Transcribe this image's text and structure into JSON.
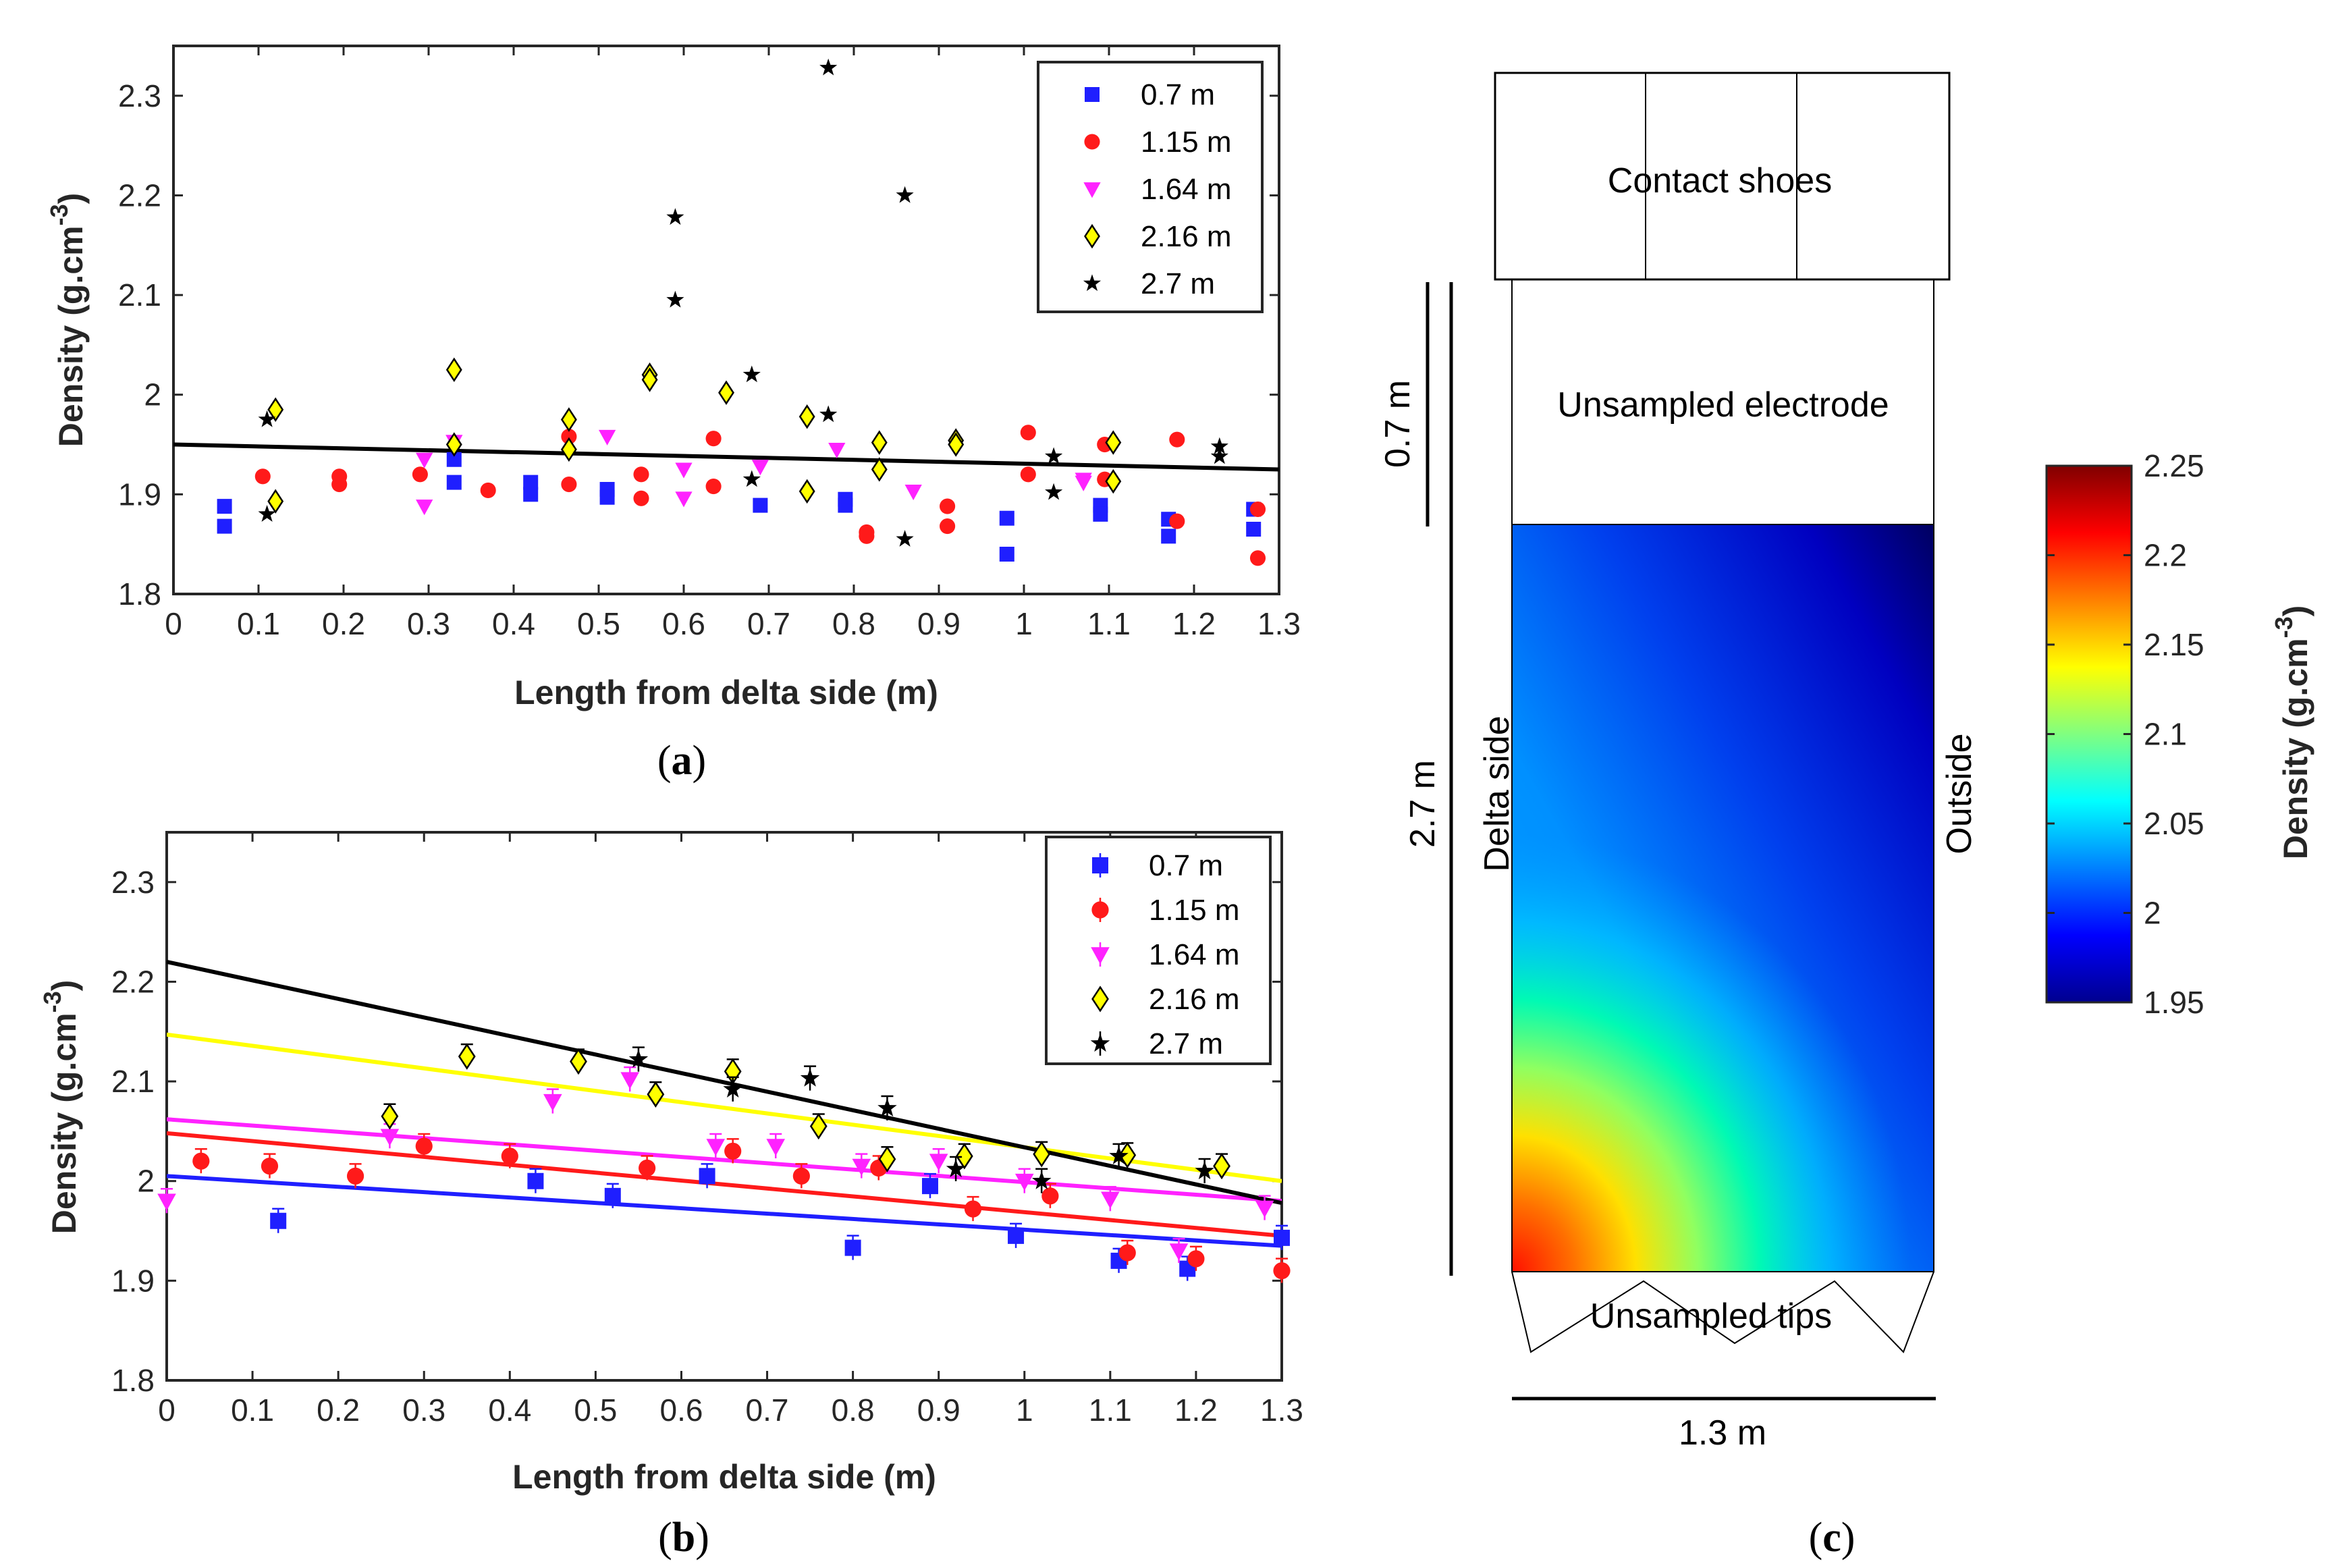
{
  "chart_data": [
    {
      "id": "a",
      "type": "scatter",
      "panel_label": "a",
      "xlabel": "Length from delta side (m)",
      "ylabel": "Density (g.cm",
      "ylabel_sup": "-3",
      "ylabel_close": ")",
      "xlim": [
        0,
        1.3
      ],
      "ylim": [
        1.8,
        2.35
      ],
      "xticks": [
        "0",
        "0.1",
        "0.2",
        "0.3",
        "0.4",
        "0.5",
        "0.6",
        "0.7",
        "0.8",
        "0.9",
        "1",
        "1.1",
        "1.2",
        "1.3"
      ],
      "yticks": [
        "1.8",
        "1.9",
        "2",
        "2.1",
        "2.2",
        "2.3"
      ],
      "legend": [
        "0.7 m",
        "1.15 m",
        "1.64 m",
        "2.16 m",
        "2.7 m"
      ],
      "legend_position": "top-right",
      "series": [
        {
          "name": "0.7 m",
          "color": "#1f1fff",
          "marker": "square",
          "points": [
            [
              0.06,
              1.888
            ],
            [
              0.06,
              1.868
            ],
            [
              0.33,
              1.935
            ],
            [
              0.33,
              1.912
            ],
            [
              0.42,
              1.912
            ],
            [
              0.42,
              1.9
            ],
            [
              0.51,
              1.905
            ],
            [
              0.51,
              1.897
            ],
            [
              0.69,
              1.889
            ],
            [
              0.79,
              1.895
            ],
            [
              0.79,
              1.889
            ],
            [
              0.98,
              1.876
            ],
            [
              0.98,
              1.84
            ],
            [
              1.09,
              1.889
            ],
            [
              1.09,
              1.88
            ],
            [
              1.17,
              1.875
            ],
            [
              1.17,
              1.858
            ],
            [
              1.27,
              1.885
            ],
            [
              1.27,
              1.865
            ]
          ]
        },
        {
          "name": "1.15 m",
          "color": "#ff1a1a",
          "marker": "circle",
          "points": [
            [
              0.105,
              1.918
            ],
            [
              0.195,
              1.918
            ],
            [
              0.195,
              1.91
            ],
            [
              0.29,
              1.92
            ],
            [
              0.37,
              1.904
            ],
            [
              0.465,
              1.958
            ],
            [
              0.465,
              1.91
            ],
            [
              0.55,
              1.92
            ],
            [
              0.55,
              1.896
            ],
            [
              0.635,
              1.956
            ],
            [
              0.635,
              1.908
            ],
            [
              0.815,
              1.862
            ],
            [
              0.815,
              1.858
            ],
            [
              0.91,
              1.888
            ],
            [
              0.91,
              1.868
            ],
            [
              1.005,
              1.962
            ],
            [
              1.005,
              1.92
            ],
            [
              1.095,
              1.95
            ],
            [
              1.095,
              1.915
            ],
            [
              1.18,
              1.955
            ],
            [
              1.18,
              1.873
            ],
            [
              1.275,
              1.885
            ],
            [
              1.275,
              1.836
            ]
          ]
        },
        {
          "name": "1.64 m",
          "color": "#ff22ff",
          "marker": "triangle-down",
          "points": [
            [
              0.295,
              1.935
            ],
            [
              0.295,
              1.888
            ],
            [
              0.33,
              1.953
            ],
            [
              0.51,
              1.958
            ],
            [
              0.6,
              1.925
            ],
            [
              0.6,
              1.896
            ],
            [
              0.69,
              1.928
            ],
            [
              0.78,
              1.945
            ],
            [
              0.87,
              1.903
            ],
            [
              1.07,
              1.912
            ],
            [
              1.07,
              1.915
            ]
          ]
        },
        {
          "name": "2.16 m",
          "color": "#ffff00",
          "marker": "diamond",
          "points": [
            [
              0.12,
              1.985
            ],
            [
              0.12,
              1.893
            ],
            [
              0.33,
              2.025
            ],
            [
              0.33,
              1.95
            ],
            [
              0.465,
              1.975
            ],
            [
              0.465,
              1.945
            ],
            [
              0.56,
              2.02
            ],
            [
              0.56,
              2.015
            ],
            [
              0.65,
              2.002
            ],
            [
              0.745,
              1.978
            ],
            [
              0.745,
              1.903
            ],
            [
              0.83,
              1.952
            ],
            [
              0.83,
              1.925
            ],
            [
              0.92,
              1.954
            ],
            [
              0.92,
              1.95
            ],
            [
              1.105,
              1.952
            ],
            [
              1.105,
              1.913
            ]
          ]
        },
        {
          "name": "2.7 m",
          "color": "#000000",
          "marker": "star",
          "points": [
            [
              0.11,
              1.975
            ],
            [
              0.11,
              1.88
            ],
            [
              0.59,
              2.178
            ],
            [
              0.59,
              2.095
            ],
            [
              0.68,
              2.02
            ],
            [
              0.68,
              1.915
            ],
            [
              0.77,
              2.328
            ],
            [
              0.77,
              1.98
            ],
            [
              0.86,
              2.2
            ],
            [
              0.86,
              1.855
            ],
            [
              1.035,
              1.938
            ],
            [
              1.035,
              1.902
            ],
            [
              1.23,
              1.948
            ],
            [
              1.23,
              1.938
            ]
          ]
        }
      ],
      "fits": [
        {
          "name": "all",
          "color": "#000000",
          "y0": 1.95,
          "y1": 1.925
        }
      ]
    },
    {
      "id": "b",
      "type": "scatter",
      "panel_label": "b",
      "xlabel": "Length from delta side (m)",
      "ylabel": "Density (g.cm",
      "ylabel_sup": "-3",
      "ylabel_close": ")",
      "xlim": [
        0,
        1.3
      ],
      "ylim": [
        1.8,
        2.35
      ],
      "xticks": [
        "0",
        "0.1",
        "0.2",
        "0.3",
        "0.4",
        "0.5",
        "0.6",
        "0.7",
        "0.8",
        "0.9",
        "1",
        "1.1",
        "1.2",
        "1.3"
      ],
      "yticks": [
        "1.8",
        "1.9",
        "2",
        "2.1",
        "2.2",
        "2.3"
      ],
      "legend": [
        "0.7 m",
        "1.15 m",
        "1.64 m",
        "2.16 m",
        "2.7 m"
      ],
      "legend_position": "top-right",
      "series": [
        {
          "name": "0.7 m",
          "color": "#1f1fff",
          "marker": "square",
          "points": [
            [
              0.13,
              1.96
            ],
            [
              0.43,
              2.0
            ],
            [
              0.52,
              1.985
            ],
            [
              0.63,
              2.005
            ],
            [
              0.8,
              1.933
            ],
            [
              0.89,
              1.995
            ],
            [
              0.99,
              1.945
            ],
            [
              1.11,
              1.92
            ],
            [
              1.19,
              1.912
            ],
            [
              1.3,
              1.943
            ]
          ]
        },
        {
          "name": "1.15 m",
          "color": "#ff1a1a",
          "marker": "circle",
          "points": [
            [
              0.04,
              2.02
            ],
            [
              0.12,
              2.015
            ],
            [
              0.22,
              2.005
            ],
            [
              0.3,
              2.035
            ],
            [
              0.4,
              2.025
            ],
            [
              0.56,
              2.013
            ],
            [
              0.66,
              2.03
            ],
            [
              0.74,
              2.005
            ],
            [
              0.83,
              2.013
            ],
            [
              0.94,
              1.972
            ],
            [
              1.03,
              1.985
            ],
            [
              1.12,
              1.928
            ],
            [
              1.2,
              1.922
            ],
            [
              1.3,
              1.91
            ]
          ]
        },
        {
          "name": "1.64 m",
          "color": "#ff22ff",
          "marker": "triangle-down",
          "points": [
            [
              0.0,
              1.98
            ],
            [
              0.26,
              2.045
            ],
            [
              0.45,
              2.08
            ],
            [
              0.54,
              2.102
            ],
            [
              0.64,
              2.035
            ],
            [
              0.71,
              2.035
            ],
            [
              0.81,
              2.015
            ],
            [
              0.9,
              2.02
            ],
            [
              1.0,
              2.0
            ],
            [
              1.1,
              1.982
            ],
            [
              1.18,
              1.93
            ],
            [
              1.28,
              1.973
            ]
          ]
        },
        {
          "name": "2.16 m",
          "color": "#ffff00",
          "marker": "diamond",
          "points": [
            [
              0.26,
              2.065
            ],
            [
              0.35,
              2.125
            ],
            [
              0.48,
              2.12
            ],
            [
              0.57,
              2.087
            ],
            [
              0.66,
              2.11
            ],
            [
              0.76,
              2.055
            ],
            [
              0.84,
              2.022
            ],
            [
              0.93,
              2.025
            ],
            [
              1.02,
              2.027
            ],
            [
              1.12,
              2.026
            ],
            [
              1.23,
              2.015
            ]
          ]
        },
        {
          "name": "2.7 m",
          "color": "#000000",
          "marker": "star",
          "points": [
            [
              0.55,
              2.122
            ],
            [
              0.66,
              2.092
            ],
            [
              0.75,
              2.103
            ],
            [
              0.84,
              2.073
            ],
            [
              0.92,
              2.012
            ],
            [
              1.02,
              2.0
            ],
            [
              1.11,
              2.025
            ],
            [
              1.21,
              2.01
            ]
          ]
        }
      ],
      "fits": [
        {
          "name": "0.7 m",
          "color": "#1f1fff",
          "y0": 2.005,
          "y1": 1.935
        },
        {
          "name": "1.15 m",
          "color": "#ff1a1a",
          "y0": 2.048,
          "y1": 1.945
        },
        {
          "name": "1.64 m",
          "color": "#ff22ff",
          "y0": 2.062,
          "y1": 1.98
        },
        {
          "name": "2.16 m",
          "color": "#ffff00",
          "y0": 2.147,
          "y1": 2.0
        },
        {
          "name": "2.7 m",
          "color": "#000000",
          "y0": 2.22,
          "y1": 1.978
        }
      ]
    },
    {
      "id": "c",
      "type": "heatmap",
      "panel_label": "c",
      "labels": {
        "contact_shoes": "Contact shoes",
        "unsampled_electrode": "Unsampled electrode",
        "unsampled_tips": "Unsampled tips",
        "delta_side": "Delta side",
        "outside": "Outside",
        "dim_top": "0.7 m",
        "dim_height": "2.7 m",
        "dim_width": "1.3 m"
      },
      "colorbar": {
        "label": "Density (g.cm",
        "label_sup": "-3",
        "label_close": ")",
        "range": [
          1.95,
          2.25
        ],
        "ticks": [
          "1.95",
          "2",
          "2.05",
          "2.1",
          "2.15",
          "2.2",
          "2.25"
        ],
        "colors": [
          "#00008f",
          "#0000ff",
          "#0080ff",
          "#00ffff",
          "#80ff80",
          "#ffff00",
          "#ff8000",
          "#ff0000",
          "#800000"
        ]
      },
      "gradient_colors": {
        "bottom_left": "#ff2000",
        "middle": "#00d8ff",
        "top_right": "#000060"
      }
    }
  ]
}
